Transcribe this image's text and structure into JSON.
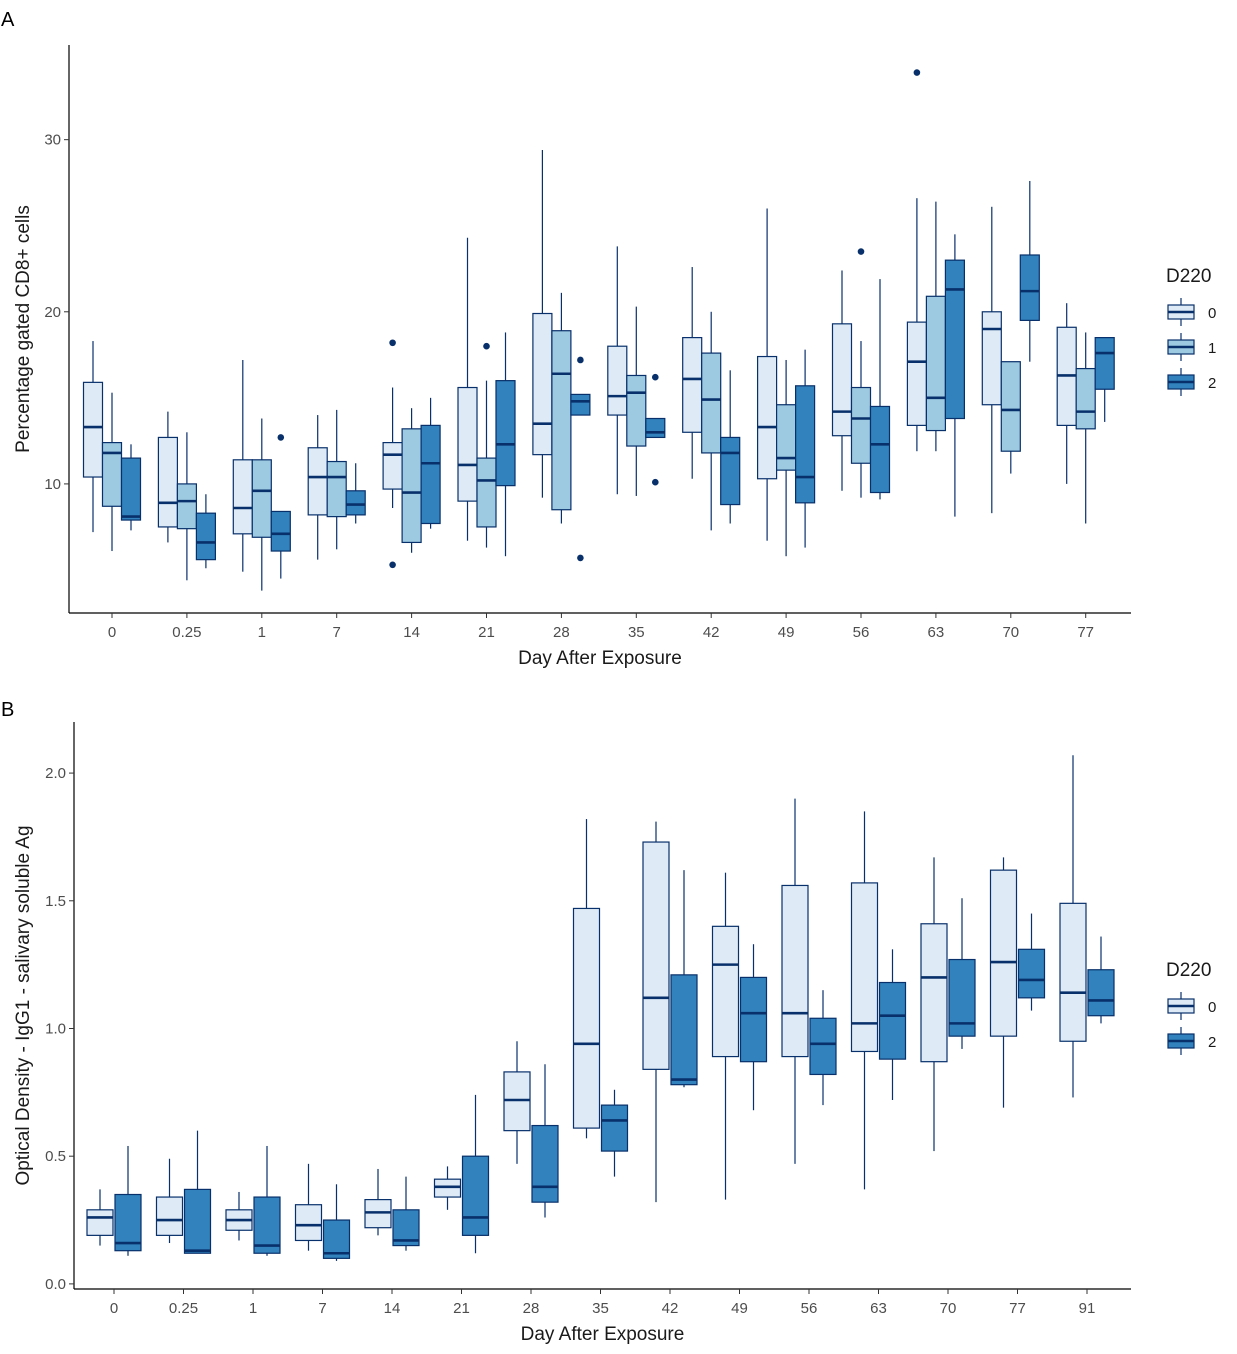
{
  "colors": {
    "outline": "#08306b",
    "axis": "#000000",
    "fills": {
      "0": "#deebf7",
      "1": "#9ecae1",
      "2": "#3182bd"
    }
  },
  "chart_data": [
    {
      "panel": "A",
      "type": "boxplot",
      "xlabel": "Day After Exposure",
      "ylabel": "Percentage gated CD8+ cells",
      "ylim": [
        2.5,
        35.5
      ],
      "yticks": [
        10,
        20,
        30
      ],
      "categories": [
        "0",
        "0.25",
        "1",
        "7",
        "14",
        "21",
        "28",
        "35",
        "42",
        "49",
        "56",
        "63",
        "70",
        "77"
      ],
      "legend": {
        "title": "D220",
        "entries": [
          "0",
          "1",
          "2"
        ],
        "position": "right"
      },
      "groups": [
        {
          "name": "0",
          "boxes": [
            {
              "lo": 7.2,
              "q1": 10.4,
              "med": 13.3,
              "q3": 15.9,
              "hi": 18.3,
              "out": []
            },
            {
              "lo": 6.6,
              "q1": 7.5,
              "med": 8.9,
              "q3": 12.7,
              "hi": 14.2,
              "out": []
            },
            {
              "lo": 4.9,
              "q1": 7.1,
              "med": 8.6,
              "q3": 11.4,
              "hi": 17.2,
              "out": []
            },
            {
              "lo": 5.6,
              "q1": 8.2,
              "med": 10.4,
              "q3": 12.1,
              "hi": 14.0,
              "out": []
            },
            {
              "lo": 8.6,
              "q1": 9.7,
              "med": 11.7,
              "q3": 12.4,
              "hi": 15.6,
              "out": [
                18.2,
                5.3
              ]
            },
            {
              "lo": 6.7,
              "q1": 9.0,
              "med": 11.1,
              "q3": 15.6,
              "hi": 24.3,
              "out": []
            },
            {
              "lo": 9.2,
              "q1": 11.7,
              "med": 13.5,
              "q3": 19.9,
              "hi": 29.4,
              "out": []
            },
            {
              "lo": 9.4,
              "q1": 14.0,
              "med": 15.1,
              "q3": 18.0,
              "hi": 23.8,
              "out": []
            },
            {
              "lo": 10.3,
              "q1": 13.0,
              "med": 16.1,
              "q3": 18.5,
              "hi": 22.6,
              "out": []
            },
            {
              "lo": 6.7,
              "q1": 10.3,
              "med": 13.3,
              "q3": 17.4,
              "hi": 26.0,
              "out": []
            },
            {
              "lo": 9.6,
              "q1": 12.8,
              "med": 14.2,
              "q3": 19.3,
              "hi": 22.4,
              "out": []
            },
            {
              "lo": 11.9,
              "q1": 13.4,
              "med": 17.1,
              "q3": 19.4,
              "hi": 26.6,
              "out": [
                33.9
              ]
            },
            {
              "lo": 8.3,
              "q1": 14.6,
              "med": 19.0,
              "q3": 20.0,
              "hi": 26.1,
              "out": []
            },
            {
              "lo": 10.0,
              "q1": 13.4,
              "med": 16.3,
              "q3": 19.1,
              "hi": 20.5,
              "out": []
            }
          ]
        },
        {
          "name": "1",
          "boxes": [
            {
              "lo": 6.1,
              "q1": 8.7,
              "med": 11.8,
              "q3": 12.4,
              "hi": 15.3,
              "out": []
            },
            {
              "lo": 4.4,
              "q1": 7.4,
              "med": 9.0,
              "q3": 10.0,
              "hi": 13.0,
              "out": []
            },
            {
              "lo": 3.8,
              "q1": 6.9,
              "med": 9.6,
              "q3": 11.4,
              "hi": 13.8,
              "out": []
            },
            {
              "lo": 6.2,
              "q1": 8.1,
              "med": 10.4,
              "q3": 11.3,
              "hi": 14.3,
              "out": []
            },
            {
              "lo": 6.0,
              "q1": 6.6,
              "med": 9.5,
              "q3": 13.2,
              "hi": 14.4,
              "out": []
            },
            {
              "lo": 6.3,
              "q1": 7.5,
              "med": 10.2,
              "q3": 11.5,
              "hi": 16.0,
              "out": [
                18.0
              ]
            },
            {
              "lo": 7.7,
              "q1": 8.5,
              "med": 16.4,
              "q3": 18.9,
              "hi": 21.1,
              "out": []
            },
            {
              "lo": 9.3,
              "q1": 12.2,
              "med": 15.3,
              "q3": 16.3,
              "hi": 20.3,
              "out": []
            },
            {
              "lo": 7.3,
              "q1": 11.8,
              "med": 14.9,
              "q3": 17.6,
              "hi": 20.0,
              "out": []
            },
            {
              "lo": 5.8,
              "q1": 10.8,
              "med": 11.5,
              "q3": 14.6,
              "hi": 17.2,
              "out": []
            },
            {
              "lo": 9.2,
              "q1": 11.2,
              "med": 13.8,
              "q3": 15.6,
              "hi": 18.3,
              "out": [
                23.5
              ]
            },
            {
              "lo": 11.9,
              "q1": 13.1,
              "med": 15.0,
              "q3": 20.9,
              "hi": 26.4,
              "out": []
            },
            {
              "lo": 10.6,
              "q1": 11.9,
              "med": 14.3,
              "q3": 17.1,
              "hi": 17.1,
              "out": []
            },
            {
              "lo": 7.7,
              "q1": 13.2,
              "med": 14.2,
              "q3": 16.7,
              "hi": 18.8,
              "out": []
            }
          ]
        },
        {
          "name": "2",
          "boxes": [
            {
              "lo": 7.3,
              "q1": 7.9,
              "med": 8.1,
              "q3": 11.5,
              "hi": 12.3,
              "out": []
            },
            {
              "lo": 5.1,
              "q1": 5.6,
              "med": 6.6,
              "q3": 8.3,
              "hi": 9.4,
              "out": []
            },
            {
              "lo": 4.5,
              "q1": 6.1,
              "med": 7.1,
              "q3": 8.4,
              "hi": 8.4,
              "out": [
                12.7
              ]
            },
            {
              "lo": 7.7,
              "q1": 8.2,
              "med": 8.8,
              "q3": 9.6,
              "hi": 11.2,
              "out": []
            },
            {
              "lo": 7.4,
              "q1": 7.7,
              "med": 11.2,
              "q3": 13.4,
              "hi": 15.0,
              "out": []
            },
            {
              "lo": 5.8,
              "q1": 9.9,
              "med": 12.3,
              "q3": 16.0,
              "hi": 18.8,
              "out": []
            },
            {
              "lo": 14.0,
              "q1": 14.0,
              "med": 14.8,
              "q3": 15.2,
              "hi": 15.2,
              "out": [
                17.2,
                5.7
              ]
            },
            {
              "lo": 12.7,
              "q1": 12.7,
              "med": 13.0,
              "q3": 13.8,
              "hi": 13.8,
              "out": [
                16.2,
                10.1
              ]
            },
            {
              "lo": 7.7,
              "q1": 8.8,
              "med": 11.8,
              "q3": 12.7,
              "hi": 16.6,
              "out": []
            },
            {
              "lo": 6.3,
              "q1": 8.9,
              "med": 10.4,
              "q3": 15.7,
              "hi": 17.8,
              "out": []
            },
            {
              "lo": 9.1,
              "q1": 9.5,
              "med": 12.3,
              "q3": 14.5,
              "hi": 21.9,
              "out": []
            },
            {
              "lo": 8.1,
              "q1": 13.8,
              "med": 21.3,
              "q3": 23.0,
              "hi": 24.5,
              "out": []
            },
            {
              "lo": 17.1,
              "q1": 19.5,
              "med": 21.2,
              "q3": 23.3,
              "hi": 27.6,
              "out": []
            },
            {
              "lo": 13.6,
              "q1": 15.5,
              "med": 17.6,
              "q3": 18.5,
              "hi": 18.5,
              "out": []
            }
          ]
        }
      ]
    },
    {
      "panel": "B",
      "type": "boxplot",
      "xlabel": "Day After Exposure",
      "ylabel": "Optical Density - IgG1 - salivary soluble Ag",
      "ylim": [
        -0.02,
        2.2
      ],
      "yticks": [
        0.0,
        0.5,
        1.0,
        1.5,
        2.0
      ],
      "ytick_labels": [
        "0.0",
        "0.5",
        "1.0",
        "1.5",
        "2.0"
      ],
      "categories": [
        "0",
        "0.25",
        "1",
        "7",
        "14",
        "21",
        "28",
        "35",
        "42",
        "49",
        "56",
        "63",
        "70",
        "77",
        "91"
      ],
      "legend": {
        "title": "D220",
        "entries": [
          "0",
          "2"
        ],
        "position": "right"
      },
      "groups": [
        {
          "name": "0",
          "boxes": [
            {
              "lo": 0.15,
              "q1": 0.19,
              "med": 0.26,
              "q3": 0.29,
              "hi": 0.37,
              "out": []
            },
            {
              "lo": 0.16,
              "q1": 0.19,
              "med": 0.25,
              "q3": 0.34,
              "hi": 0.49,
              "out": []
            },
            {
              "lo": 0.17,
              "q1": 0.21,
              "med": 0.25,
              "q3": 0.29,
              "hi": 0.36,
              "out": []
            },
            {
              "lo": 0.13,
              "q1": 0.17,
              "med": 0.23,
              "q3": 0.31,
              "hi": 0.47,
              "out": []
            },
            {
              "lo": 0.19,
              "q1": 0.22,
              "med": 0.28,
              "q3": 0.33,
              "hi": 0.45,
              "out": []
            },
            {
              "lo": 0.29,
              "q1": 0.34,
              "med": 0.38,
              "q3": 0.41,
              "hi": 0.46,
              "out": []
            },
            {
              "lo": 0.47,
              "q1": 0.6,
              "med": 0.72,
              "q3": 0.83,
              "hi": 0.95,
              "out": []
            },
            {
              "lo": 0.57,
              "q1": 0.61,
              "med": 0.94,
              "q3": 1.47,
              "hi": 1.82,
              "out": []
            },
            {
              "lo": 0.32,
              "q1": 0.84,
              "med": 1.12,
              "q3": 1.73,
              "hi": 1.81,
              "out": []
            },
            {
              "lo": 0.33,
              "q1": 0.89,
              "med": 1.25,
              "q3": 1.4,
              "hi": 1.61,
              "out": []
            },
            {
              "lo": 0.47,
              "q1": 0.89,
              "med": 1.06,
              "q3": 1.56,
              "hi": 1.9,
              "out": []
            },
            {
              "lo": 0.37,
              "q1": 0.91,
              "med": 1.02,
              "q3": 1.57,
              "hi": 1.85,
              "out": []
            },
            {
              "lo": 0.52,
              "q1": 0.87,
              "med": 1.2,
              "q3": 1.41,
              "hi": 1.67,
              "out": []
            },
            {
              "lo": 0.69,
              "q1": 0.97,
              "med": 1.26,
              "q3": 1.62,
              "hi": 1.67,
              "out": []
            },
            {
              "lo": 0.73,
              "q1": 0.95,
              "med": 1.14,
              "q3": 1.49,
              "hi": 2.07,
              "out": []
            }
          ]
        },
        {
          "name": "2",
          "boxes": [
            {
              "lo": 0.11,
              "q1": 0.13,
              "med": 0.16,
              "q3": 0.35,
              "hi": 0.54,
              "out": []
            },
            {
              "lo": 0.12,
              "q1": 0.12,
              "med": 0.13,
              "q3": 0.37,
              "hi": 0.6,
              "out": []
            },
            {
              "lo": 0.11,
              "q1": 0.12,
              "med": 0.15,
              "q3": 0.34,
              "hi": 0.54,
              "out": []
            },
            {
              "lo": 0.09,
              "q1": 0.1,
              "med": 0.12,
              "q3": 0.25,
              "hi": 0.39,
              "out": []
            },
            {
              "lo": 0.13,
              "q1": 0.15,
              "med": 0.17,
              "q3": 0.29,
              "hi": 0.42,
              "out": []
            },
            {
              "lo": 0.12,
              "q1": 0.19,
              "med": 0.26,
              "q3": 0.5,
              "hi": 0.74,
              "out": []
            },
            {
              "lo": 0.26,
              "q1": 0.32,
              "med": 0.38,
              "q3": 0.62,
              "hi": 0.86,
              "out": []
            },
            {
              "lo": 0.42,
              "q1": 0.52,
              "med": 0.64,
              "q3": 0.7,
              "hi": 0.76,
              "out": []
            },
            {
              "lo": 0.77,
              "q1": 0.78,
              "med": 0.8,
              "q3": 1.21,
              "hi": 1.62,
              "out": []
            },
            {
              "lo": 0.68,
              "q1": 0.87,
              "med": 1.06,
              "q3": 1.2,
              "hi": 1.33,
              "out": []
            },
            {
              "lo": 0.7,
              "q1": 0.82,
              "med": 0.94,
              "q3": 1.04,
              "hi": 1.15,
              "out": []
            },
            {
              "lo": 0.72,
              "q1": 0.88,
              "med": 1.05,
              "q3": 1.18,
              "hi": 1.31,
              "out": []
            },
            {
              "lo": 0.92,
              "q1": 0.97,
              "med": 1.02,
              "q3": 1.27,
              "hi": 1.51,
              "out": []
            },
            {
              "lo": 1.07,
              "q1": 1.12,
              "med": 1.19,
              "q3": 1.31,
              "hi": 1.45,
              "out": []
            },
            {
              "lo": 1.02,
              "q1": 1.05,
              "med": 1.11,
              "q3": 1.23,
              "hi": 1.36,
              "out": []
            }
          ]
        }
      ]
    }
  ]
}
